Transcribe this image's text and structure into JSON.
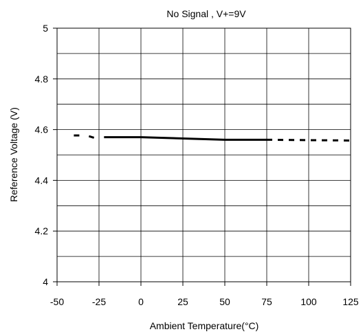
{
  "chart_data": {
    "type": "line",
    "title": "No Signal , V+=9V",
    "xlabel": "Ambient Temperature(°C)",
    "ylabel": "Reference Voltage (V)",
    "xlim": [
      -50,
      125
    ],
    "ylim": [
      4,
      5
    ],
    "x_ticks": [
      -50,
      -25,
      0,
      25,
      50,
      75,
      100,
      125
    ],
    "y_ticks": [
      4,
      4.2,
      4.4,
      4.6,
      4.8,
      5
    ],
    "x_tick_labels": [
      "-50",
      "-25",
      "0",
      "25",
      "50",
      "75",
      "100",
      "125"
    ],
    "y_tick_labels": [
      "4",
      "4.2",
      "4.4",
      "4.6",
      "4.8",
      "5"
    ],
    "grid": {
      "x_step": 25,
      "y_step": 0.1,
      "on": true
    },
    "series": [
      {
        "style": "dashed",
        "x": [
          -40,
          -35
        ],
        "y": [
          4.577,
          4.577
        ]
      },
      {
        "style": "dashed",
        "x": [
          -31,
          -28
        ],
        "y": [
          4.574,
          4.568
        ]
      },
      {
        "style": "solid",
        "x": [
          -22,
          0,
          25,
          50,
          75
        ],
        "y": [
          4.57,
          4.57,
          4.565,
          4.56,
          4.56
        ]
      },
      {
        "style": "dashed",
        "x": [
          75,
          125
        ],
        "y": [
          4.56,
          4.557
        ]
      }
    ]
  }
}
